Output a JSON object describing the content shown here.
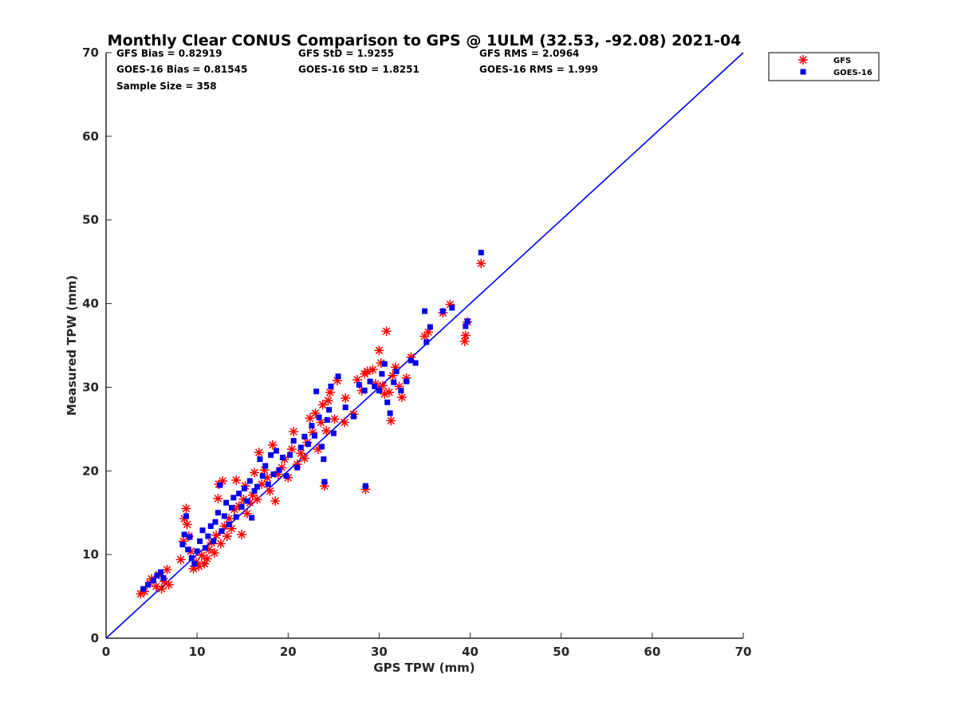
{
  "chart_data": {
    "type": "scatter",
    "title": "Monthly Clear CONUS Comparison to GPS @ 1ULM (32.53, -92.08) 2021-04",
    "xlabel": "GPS TPW (mm)",
    "ylabel": "Measured TPW (mm)",
    "xlim": [
      0,
      70
    ],
    "ylim": [
      0,
      70
    ],
    "xticks": [
      "0",
      "10",
      "20",
      "30",
      "40",
      "50",
      "60",
      "70"
    ],
    "yticks": [
      "0",
      "10",
      "20",
      "30",
      "40",
      "50",
      "60",
      "70"
    ],
    "grid": false,
    "legend": "top-right outside",
    "stats": [
      [
        "GFS Bias = 0.82919",
        "GFS StD = 1.9255",
        "GFS RMS = 2.0964"
      ],
      [
        "GOES-16 Bias = 0.81545",
        "GOES-16 StD = 1.8251",
        "GOES-16 RMS = 1.999"
      ],
      [
        "Sample Size = 358"
      ]
    ],
    "reference_line": {
      "x": [
        0,
        70
      ],
      "y": [
        0,
        70
      ],
      "color": "#0000ee"
    },
    "series": [
      {
        "name": "GFS",
        "marker": "asterisk",
        "color": "#ff0000",
        "points": [
          [
            3.8,
            5.3
          ],
          [
            4.2,
            5.6
          ],
          [
            4.8,
            6.6
          ],
          [
            5.0,
            7.1
          ],
          [
            5.5,
            6.2
          ],
          [
            5.8,
            7.6
          ],
          [
            6.1,
            5.9
          ],
          [
            6.4,
            6.8
          ],
          [
            6.7,
            8.2
          ],
          [
            6.9,
            6.4
          ],
          [
            8.2,
            9.4
          ],
          [
            8.5,
            11.6
          ],
          [
            8.6,
            14.3
          ],
          [
            8.8,
            15.5
          ],
          [
            8.9,
            13.6
          ],
          [
            9.1,
            12.2
          ],
          [
            9.3,
            10.4
          ],
          [
            9.6,
            8.3
          ],
          [
            9.9,
            9.1
          ],
          [
            10.2,
            8.6
          ],
          [
            10.5,
            9.9
          ],
          [
            10.8,
            8.9
          ],
          [
            11.1,
            9.5
          ],
          [
            11.3,
            10.6
          ],
          [
            11.6,
            11.4
          ],
          [
            11.9,
            10.2
          ],
          [
            12.1,
            12.3
          ],
          [
            12.3,
            16.7
          ],
          [
            12.4,
            18.4
          ],
          [
            12.6,
            11.3
          ],
          [
            12.8,
            18.8
          ],
          [
            13.0,
            13.4
          ],
          [
            13.3,
            12.2
          ],
          [
            13.5,
            14.3
          ],
          [
            13.8,
            13.1
          ],
          [
            14.1,
            15.4
          ],
          [
            14.3,
            18.9
          ],
          [
            14.6,
            15.8
          ],
          [
            14.9,
            12.4
          ],
          [
            15.1,
            16.6
          ],
          [
            15.3,
            18.2
          ],
          [
            15.5,
            14.9
          ],
          [
            15.8,
            16.2
          ],
          [
            16.1,
            17.1
          ],
          [
            16.3,
            19.8
          ],
          [
            16.6,
            16.6
          ],
          [
            16.8,
            22.2
          ],
          [
            17.1,
            18.4
          ],
          [
            17.4,
            20.1
          ],
          [
            17.7,
            19.2
          ],
          [
            18.0,
            17.6
          ],
          [
            18.3,
            23.1
          ],
          [
            18.6,
            16.4
          ],
          [
            18.9,
            19.6
          ],
          [
            19.3,
            20.4
          ],
          [
            19.6,
            21.4
          ],
          [
            20.0,
            19.2
          ],
          [
            20.4,
            22.6
          ],
          [
            20.6,
            24.7
          ],
          [
            21.0,
            20.8
          ],
          [
            21.4,
            22.1
          ],
          [
            21.8,
            21.5
          ],
          [
            22.1,
            23.4
          ],
          [
            22.4,
            26.3
          ],
          [
            22.7,
            24.6
          ],
          [
            23.0,
            26.9
          ],
          [
            23.3,
            22.6
          ],
          [
            23.6,
            25.8
          ],
          [
            23.8,
            27.9
          ],
          [
            24.0,
            18.2
          ],
          [
            24.2,
            24.8
          ],
          [
            24.4,
            28.4
          ],
          [
            24.6,
            29.4
          ],
          [
            25.1,
            26.2
          ],
          [
            25.4,
            30.8
          ],
          [
            26.2,
            25.8
          ],
          [
            26.3,
            28.7
          ],
          [
            27.2,
            26.8
          ],
          [
            27.6,
            30.9
          ],
          [
            28.1,
            29.6
          ],
          [
            28.4,
            31.6
          ],
          [
            28.5,
            17.8
          ],
          [
            28.7,
            31.9
          ],
          [
            29.3,
            32.1
          ],
          [
            29.6,
            30.4
          ],
          [
            30.0,
            34.4
          ],
          [
            30.2,
            32.9
          ],
          [
            30.4,
            30.2
          ],
          [
            30.6,
            29.2
          ],
          [
            30.8,
            36.7
          ],
          [
            31.1,
            29.4
          ],
          [
            31.3,
            26.0
          ],
          [
            31.5,
            31.4
          ],
          [
            31.8,
            32.4
          ],
          [
            32.2,
            30.1
          ],
          [
            32.5,
            28.8
          ],
          [
            33.0,
            31.1
          ],
          [
            33.5,
            33.6
          ],
          [
            35.0,
            36.1
          ],
          [
            35.4,
            36.6
          ],
          [
            37.0,
            38.9
          ],
          [
            37.8,
            39.9
          ],
          [
            39.4,
            35.5
          ],
          [
            39.5,
            36.2
          ],
          [
            39.7,
            37.8
          ],
          [
            41.2,
            44.8
          ]
        ]
      },
      {
        "name": "GOES-16",
        "marker": "square",
        "color": "#0000ee",
        "points": [
          [
            4.1,
            5.9
          ],
          [
            4.6,
            6.4
          ],
          [
            5.2,
            6.9
          ],
          [
            5.6,
            7.5
          ],
          [
            6.0,
            7.9
          ],
          [
            6.3,
            7.2
          ],
          [
            8.4,
            11.2
          ],
          [
            8.6,
            12.4
          ],
          [
            8.8,
            14.6
          ],
          [
            9.0,
            10.6
          ],
          [
            9.2,
            12.1
          ],
          [
            9.4,
            9.6
          ],
          [
            9.7,
            8.9
          ],
          [
            10.0,
            10.4
          ],
          [
            10.3,
            11.6
          ],
          [
            10.6,
            12.9
          ],
          [
            10.9,
            10.8
          ],
          [
            11.2,
            12.2
          ],
          [
            11.5,
            13.4
          ],
          [
            11.8,
            11.6
          ],
          [
            12.0,
            13.9
          ],
          [
            12.3,
            15.0
          ],
          [
            12.5,
            18.3
          ],
          [
            12.7,
            12.8
          ],
          [
            13.0,
            14.6
          ],
          [
            13.2,
            16.2
          ],
          [
            13.5,
            13.6
          ],
          [
            13.8,
            15.6
          ],
          [
            14.0,
            16.8
          ],
          [
            14.3,
            14.5
          ],
          [
            14.6,
            17.3
          ],
          [
            14.9,
            15.7
          ],
          [
            15.2,
            17.9
          ],
          [
            15.5,
            16.4
          ],
          [
            15.8,
            18.8
          ],
          [
            16.0,
            14.4
          ],
          [
            16.3,
            17.6
          ],
          [
            16.6,
            18.1
          ],
          [
            16.9,
            21.4
          ],
          [
            17.2,
            19.4
          ],
          [
            17.5,
            20.6
          ],
          [
            17.8,
            18.4
          ],
          [
            18.1,
            21.9
          ],
          [
            18.4,
            19.6
          ],
          [
            18.7,
            22.4
          ],
          [
            19.0,
            20.1
          ],
          [
            19.4,
            21.6
          ],
          [
            19.8,
            19.4
          ],
          [
            20.2,
            21.9
          ],
          [
            20.6,
            23.6
          ],
          [
            21.0,
            20.4
          ],
          [
            21.4,
            22.8
          ],
          [
            21.8,
            24.1
          ],
          [
            22.2,
            23.2
          ],
          [
            22.6,
            25.4
          ],
          [
            22.9,
            24.2
          ],
          [
            23.1,
            29.5
          ],
          [
            23.4,
            26.4
          ],
          [
            23.7,
            22.9
          ],
          [
            23.9,
            21.4
          ],
          [
            24.0,
            18.7
          ],
          [
            24.3,
            26.1
          ],
          [
            24.5,
            27.3
          ],
          [
            24.7,
            30.1
          ],
          [
            25.0,
            24.5
          ],
          [
            25.5,
            31.3
          ],
          [
            26.3,
            27.6
          ],
          [
            27.2,
            26.5
          ],
          [
            27.8,
            30.3
          ],
          [
            28.4,
            29.6
          ],
          [
            28.5,
            18.2
          ],
          [
            29.0,
            30.7
          ],
          [
            29.5,
            30.1
          ],
          [
            30.0,
            29.6
          ],
          [
            30.3,
            31.6
          ],
          [
            30.6,
            32.8
          ],
          [
            30.9,
            28.2
          ],
          [
            31.2,
            26.9
          ],
          [
            31.6,
            30.6
          ],
          [
            31.9,
            31.9
          ],
          [
            32.4,
            29.6
          ],
          [
            33.0,
            30.7
          ],
          [
            33.5,
            33.2
          ],
          [
            34.0,
            32.9
          ],
          [
            35.0,
            39.1
          ],
          [
            35.2,
            35.4
          ],
          [
            35.6,
            37.2
          ],
          [
            37.0,
            39.1
          ],
          [
            38.0,
            39.5
          ],
          [
            39.5,
            37.3
          ],
          [
            39.7,
            37.9
          ],
          [
            41.2,
            46.1
          ]
        ]
      }
    ]
  }
}
